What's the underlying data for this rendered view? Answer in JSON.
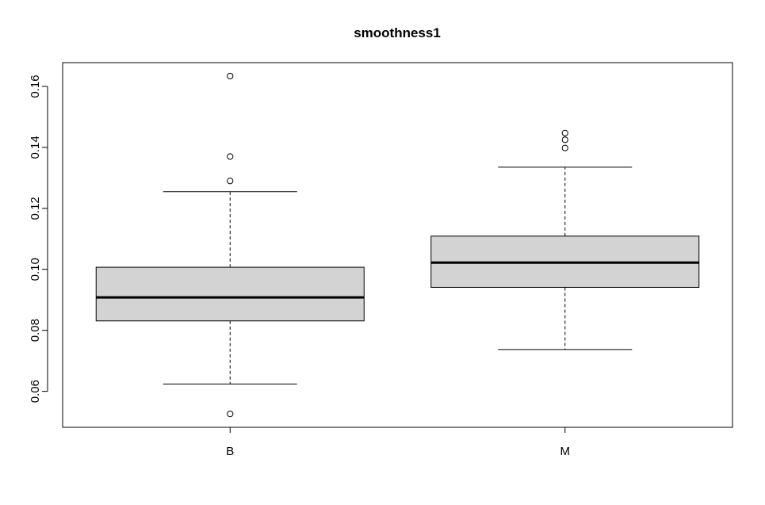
{
  "chart_data": {
    "type": "boxplot",
    "title": "smoothness1",
    "xlabel": "",
    "ylabel": "",
    "categories": [
      "B",
      "M"
    ],
    "ylim": [
      0.0482,
      0.1678
    ],
    "y_ticks": [
      0.06,
      0.08,
      0.1,
      0.12,
      0.14,
      0.16
    ],
    "y_tick_labels": [
      "0.06",
      "0.08",
      "0.10",
      "0.12",
      "0.14",
      "0.16"
    ],
    "grid": false,
    "box_fill": "#d3d3d3",
    "series": [
      {
        "category": "B",
        "whisker_low": 0.0624,
        "q1": 0.0831,
        "median": 0.0908,
        "q3": 0.1007,
        "whisker_high": 0.1255,
        "outliers": [
          0.0526,
          0.129,
          0.137,
          0.1634
        ]
      },
      {
        "category": "M",
        "whisker_low": 0.0737,
        "q1": 0.0941,
        "median": 0.1022,
        "q3": 0.1109,
        "whisker_high": 0.1335,
        "outliers": [
          0.1398,
          0.1425,
          0.1447
        ]
      }
    ]
  }
}
